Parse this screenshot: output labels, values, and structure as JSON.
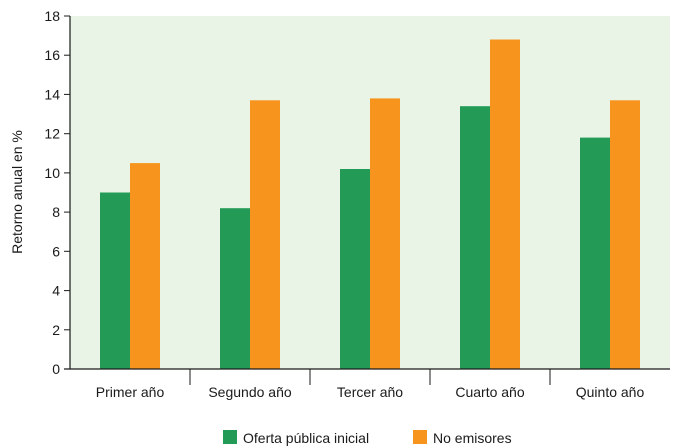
{
  "chart_data": {
    "type": "bar",
    "categories": [
      "Primer año",
      "Segundo año",
      "Tercer año",
      "Cuarto año",
      "Quinto año"
    ],
    "series": [
      {
        "name": "Oferta pública inicial",
        "color": "#239b56",
        "values": [
          9.0,
          8.2,
          10.2,
          13.4,
          11.8
        ]
      },
      {
        "name": "No emisores",
        "color": "#f7941d",
        "values": [
          10.5,
          13.7,
          13.8,
          16.8,
          13.7
        ]
      }
    ],
    "ylabel": "Retorno anual en %",
    "xlabel": "",
    "ylim": [
      0,
      18
    ],
    "yticks": [
      0,
      2,
      4,
      6,
      8,
      10,
      12,
      14,
      16,
      18
    ],
    "grid": false,
    "plot_background": "#e9f3e6",
    "legend_position": "bottom-center"
  }
}
